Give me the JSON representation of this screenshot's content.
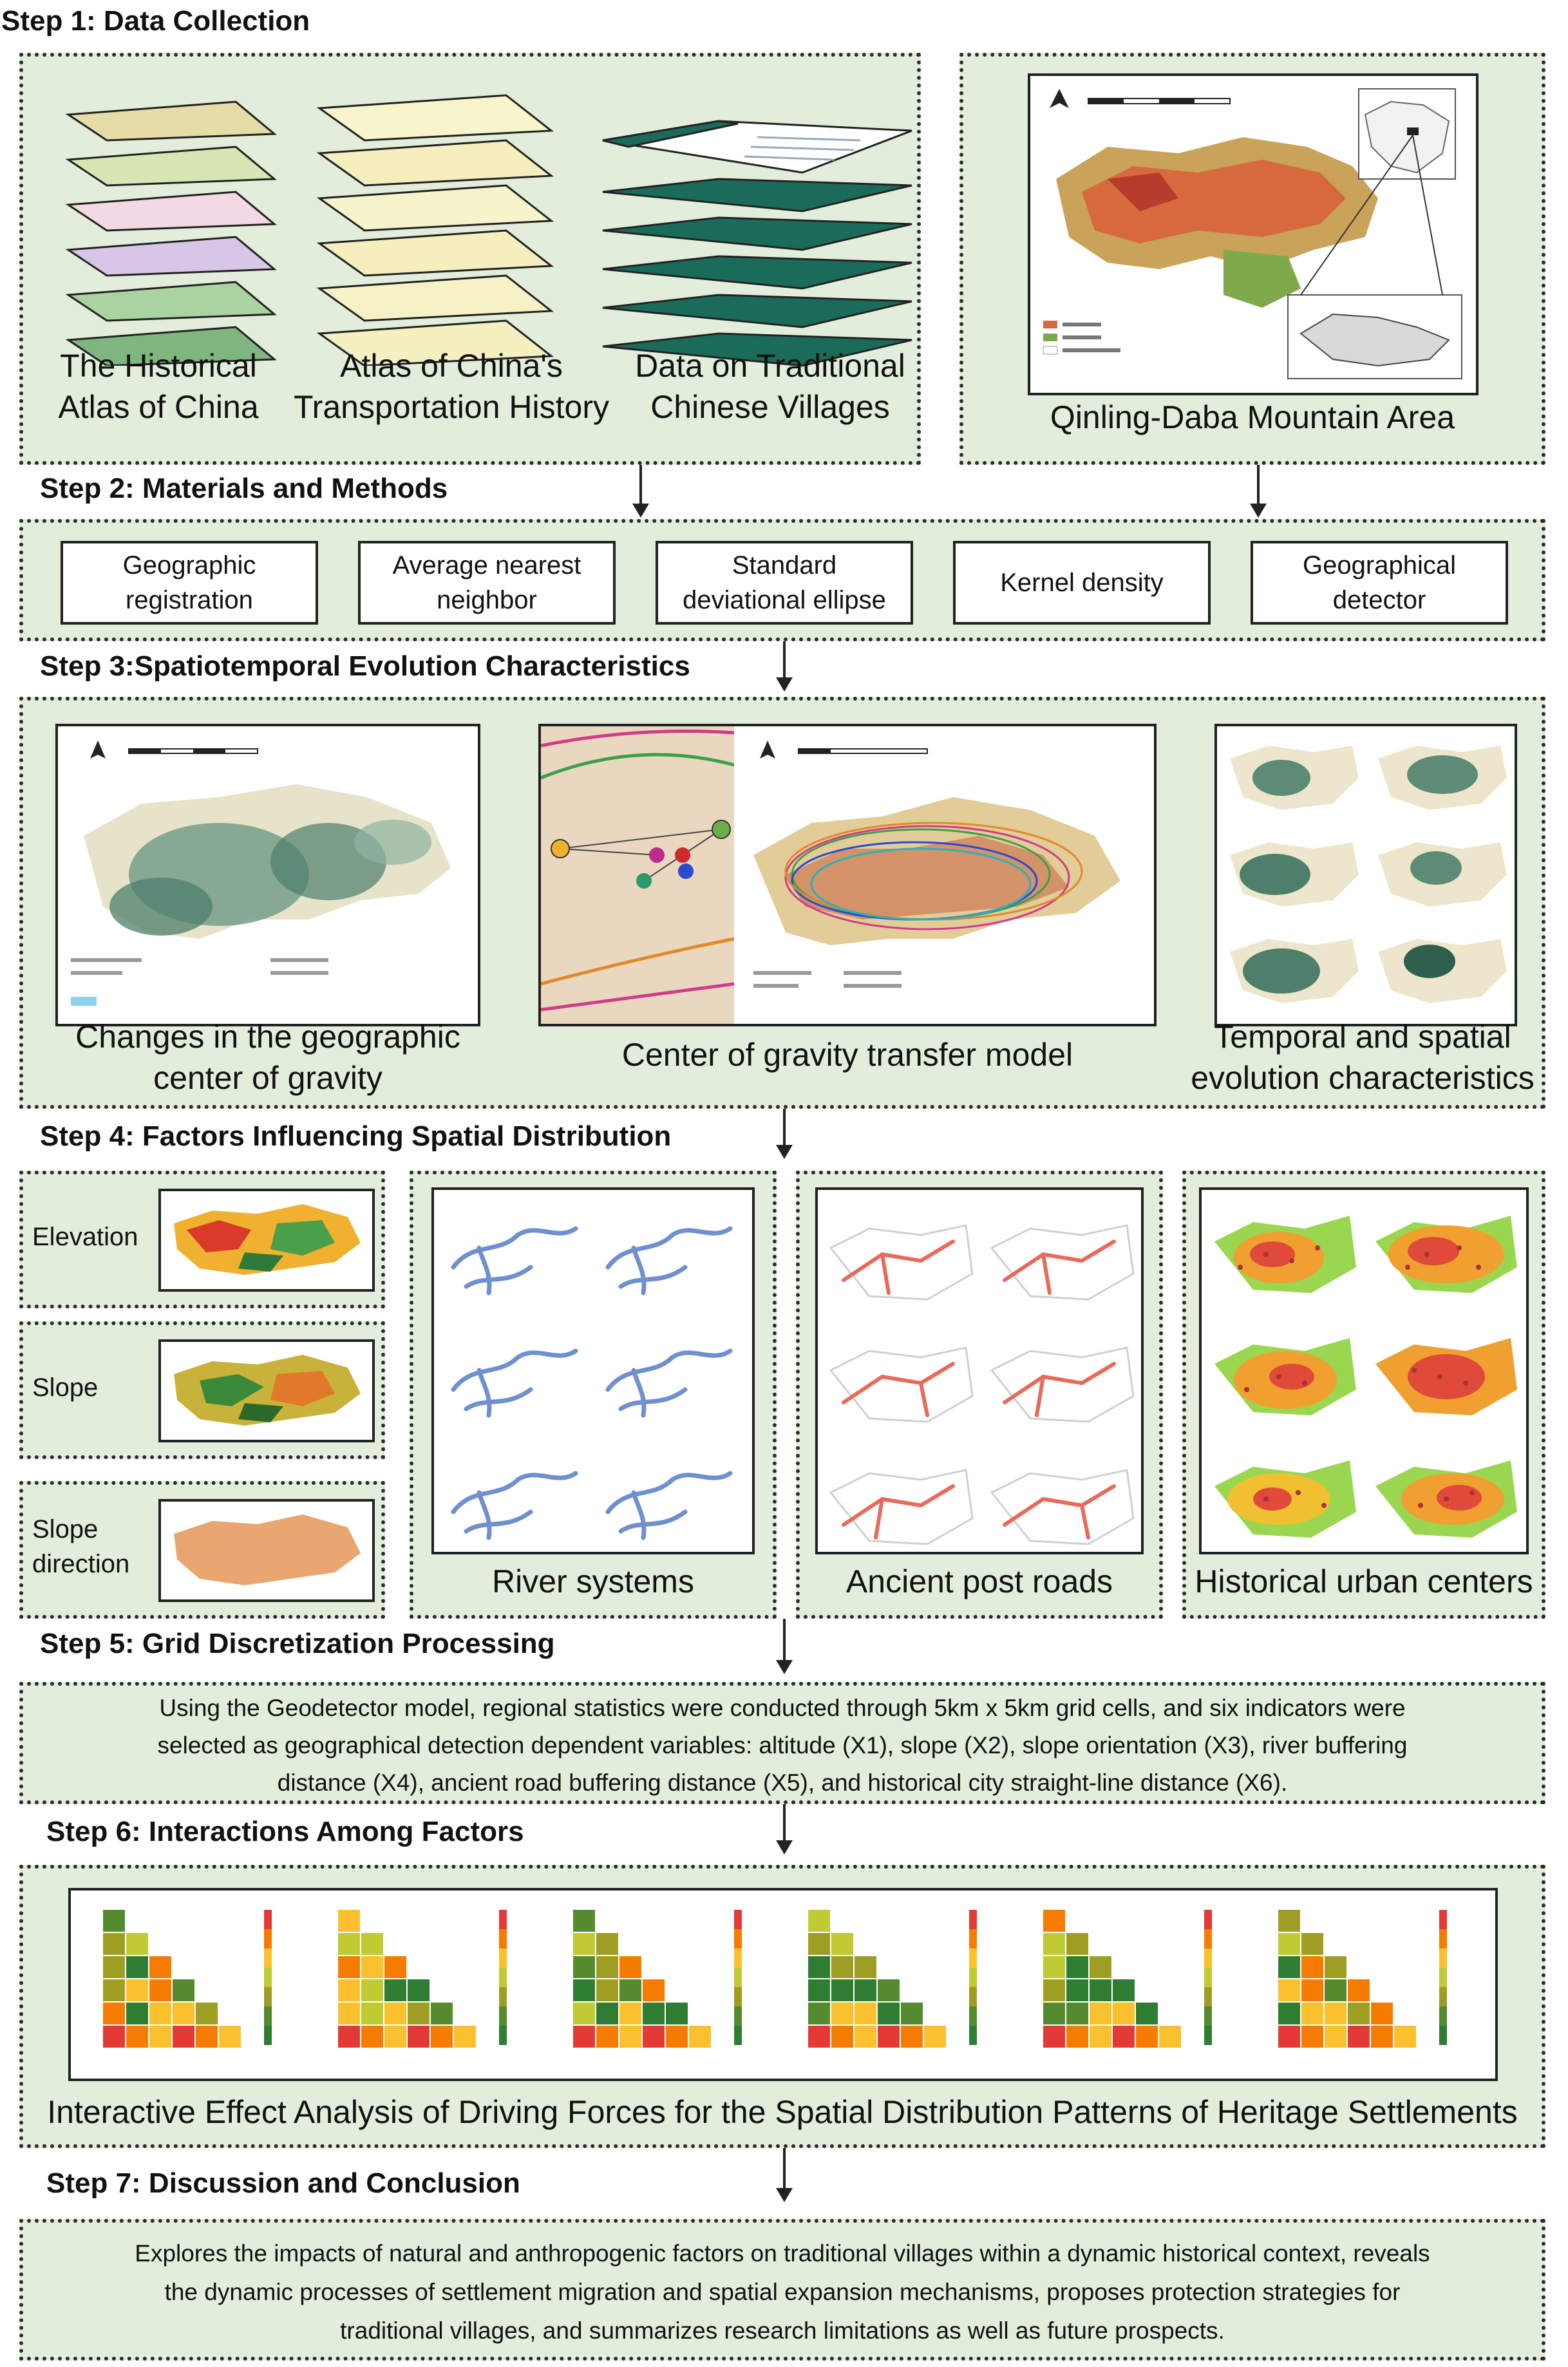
{
  "step1": {
    "title": "Step 1: Data Collection",
    "sources": [
      {
        "line1": "The Historical",
        "line2": "Atlas of China"
      },
      {
        "line1": "Atlas of China's",
        "line2": "Transportation History"
      },
      {
        "line1": "Data on Traditional",
        "line2": "Chinese Villages"
      }
    ],
    "area_label": "Qinling-Daba Mountain Area"
  },
  "step2": {
    "title": "Step 2: Materials and Methods",
    "methods": [
      {
        "line1": "Geographic",
        "line2": "registration"
      },
      {
        "line1": "Average nearest",
        "line2": "neighbor"
      },
      {
        "line1": "Standard",
        "line2": "deviational ellipse"
      },
      {
        "line1": "Kernel density",
        "line2": ""
      },
      {
        "line1": "Geographical",
        "line2": "detector"
      }
    ]
  },
  "step3": {
    "title": "Step 3:Spatiotemporal Evolution Characteristics",
    "panels": [
      {
        "line1": "Changes in the geographic",
        "line2": "center of gravity"
      },
      {
        "line1": "Center of gravity transfer model",
        "line2": ""
      },
      {
        "line1": "Temporal and spatial",
        "line2": "evolution characteristics"
      }
    ]
  },
  "step4": {
    "title": "Step 4: Factors Influencing Spatial Distribution",
    "terrain": [
      "Elevation",
      "Slope",
      "Slope",
      "direction"
    ],
    "panels": [
      "River systems",
      "Ancient post roads",
      "Historical urban centers"
    ]
  },
  "step5": {
    "title": "Step 5: Grid Discretization Processing",
    "lines": [
      "Using the Geodetector model, regional statistics were conducted through 5km x 5km grid cells, and six indicators were",
      "selected as geographical detection dependent variables: altitude (X1), slope (X2), slope orientation (X3), river buffering",
      "distance (X4), ancient road buffering distance (X5), and historical city straight-line distance (X6)."
    ]
  },
  "step6": {
    "title": "Step 6: Interactions Among Factors",
    "caption": "Interactive Effect Analysis of Driving Forces for the Spatial Distribution Patterns of Heritage Settlements"
  },
  "step7": {
    "title": "Step 7: Discussion and Conclusion",
    "lines": [
      "Explores the impacts of natural and anthropogenic factors on traditional villages within a dynamic historical context, reveals",
      "the dynamic processes of settlement migration and spatial expansion mechanisms, proposes protection strategies for",
      "traditional villages, and summarizes research limitations as well as future prospects."
    ]
  },
  "colors": {
    "panel_fill": "#e2eedb",
    "border": "#2b2b2b",
    "village_teal": "#1b6b5a",
    "river_blue": "#6f8fcf",
    "road_red": "#e86a5a"
  }
}
